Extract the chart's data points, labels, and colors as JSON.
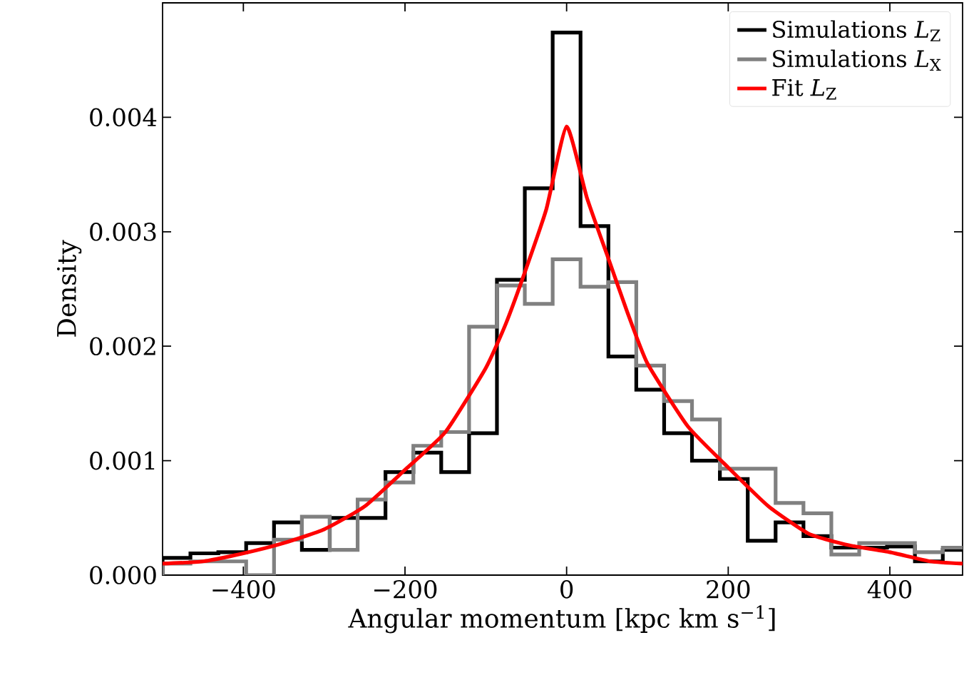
{
  "chart_data": {
    "type": "histogram",
    "xlabel": "Angular momentum [kpc km s$^{−1}$]",
    "ylabel": "Density",
    "bins": [
      -500,
      -465.52,
      -431.03,
      -396.55,
      -362.07,
      -327.59,
      -293.1,
      -258.62,
      -224.14,
      -189.66,
      -155.17,
      -120.69,
      -86.21,
      -51.72,
      -17.24,
      17.24,
      51.72,
      86.21,
      120.69,
      155.17,
      189.66,
      224.14,
      258.62,
      293.1,
      327.59,
      362.07,
      396.55,
      431.03,
      465.52,
      500
    ],
    "series": [
      {
        "name": "Simulations *L*$_{Z}$",
        "color": "#000000",
        "values": [
          0.00015,
          0.00019,
          0.0002,
          0.00028,
          0.00046,
          0.00022,
          0.0005,
          0.0005,
          0.0009,
          0.00107,
          0.0009,
          0.00124,
          0.00258,
          0.00338,
          0.00474,
          0.00305,
          0.00191,
          0.00162,
          0.00124,
          0.001,
          0.00084,
          0.0003,
          0.00046,
          0.00034,
          0.00024,
          0.00024,
          0.00025,
          0.00012,
          0.00022
        ]
      },
      {
        "name": "Simulations *L*$_{X}$",
        "color": "#808080",
        "values": [
          0.0001,
          0.00012,
          0.00012,
          0,
          0.00031,
          0.00051,
          0.00022,
          0.00066,
          0.00081,
          0.00113,
          0.00125,
          0.00217,
          0.00253,
          0.00237,
          0.00276,
          0.00252,
          0.00256,
          0.00183,
          0.00152,
          0.00136,
          0.00093,
          0.00093,
          0.00063,
          0.00054,
          0.00018,
          0.00028,
          0.00028,
          0.0002,
          0.00024
        ]
      },
      {
        "name": "Fit *L*$_{Z}$",
        "type": "line",
        "color": "#ff0000",
        "x": [
          -500,
          -450,
          -400,
          -350,
          -300,
          -250,
          -200,
          -150,
          -100,
          -75,
          -50,
          -25,
          0,
          25,
          50,
          75,
          100,
          150,
          200,
          250,
          300,
          350,
          400,
          450,
          490
        ],
        "values": [
          0.0001,
          0.00012,
          0.00019,
          0.00028,
          0.0004,
          0.0006,
          0.00092,
          0.00125,
          0.00181,
          0.0022,
          0.00268,
          0.0032,
          0.00392,
          0.0033,
          0.0028,
          0.0023,
          0.00185,
          0.0013,
          0.00094,
          0.0006,
          0.00036,
          0.00026,
          0.0002,
          0.00012,
          0.0001
        ]
      }
    ],
    "xlim": [
      -500,
      490
    ],
    "ylim": [
      0,
      0.005
    ],
    "xticks": [
      {
        "value": -400,
        "label": "−400"
      },
      {
        "value": -200,
        "label": "−200"
      },
      0,
      200,
      400
    ],
    "yticks": [
      {
        "value": 0,
        "label": "0.000"
      },
      {
        "value": 0.001,
        "label": "0.001"
      },
      {
        "value": 0.002,
        "label": "0.002"
      },
      {
        "value": 0.003,
        "label": "0.003"
      },
      {
        "value": 0.004,
        "label": "0.004"
      }
    ],
    "legend": "top right"
  }
}
